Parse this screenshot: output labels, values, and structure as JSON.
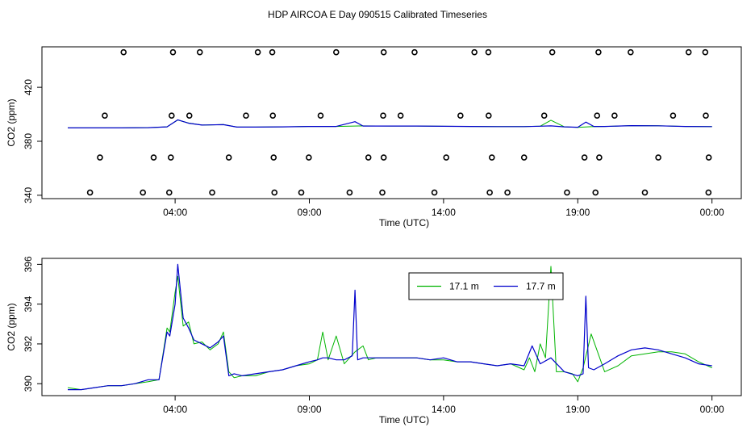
{
  "title": "HDP AIRCOA E  Day 090515  Calibrated Timeseries",
  "colors": {
    "green": "#00b400",
    "blue": "#0000cc",
    "axis": "#000000"
  },
  "chart_data": [
    {
      "type": "scatter",
      "xlabel": "Time (UTC)",
      "ylabel": "CO2 (ppm)",
      "xlim": [
        0,
        24.1
      ],
      "ylim": [
        337.5,
        450
      ],
      "xticks": [
        {
          "x": 4,
          "label": "04:00"
        },
        {
          "x": 9,
          "label": "09:00"
        },
        {
          "x": 14,
          "label": "14:00"
        },
        {
          "x": 19,
          "label": "19:00"
        },
        {
          "x": 24,
          "label": "00:00"
        }
      ],
      "yticks": [
        {
          "y": 340,
          "label": "340"
        },
        {
          "y": 380,
          "label": "380"
        },
        {
          "y": 420,
          "label": "420"
        }
      ],
      "calibration_points": {
        "x": [
          2.08,
          3.92,
          4.92,
          7.08,
          7.62,
          10.0,
          11.77,
          12.92,
          15.15,
          15.67,
          18.05,
          19.77,
          20.97,
          23.13,
          23.75,
          1.38,
          3.87,
          4.53,
          6.64,
          7.64,
          9.42,
          11.75,
          12.4,
          14.63,
          15.68,
          17.75,
          19.72,
          20.37,
          22.55,
          23.77,
          0.83,
          2.8,
          3.78,
          5.38,
          7.7,
          8.7,
          10.5,
          11.72,
          13.66,
          15.72,
          16.38,
          18.6,
          19.66,
          21.5,
          23.87,
          1.2,
          3.2,
          3.84,
          6.0,
          7.67,
          8.98,
          11.2,
          11.77,
          14.1,
          15.8,
          17.0,
          19.25,
          19.8,
          22.0,
          23.88
        ],
        "y": [
          446,
          446,
          446,
          446,
          446,
          446,
          446,
          446,
          446,
          446,
          446,
          446,
          446,
          446,
          446,
          399,
          399,
          399,
          399,
          399,
          399,
          399,
          399,
          399,
          399,
          399,
          399,
          399,
          399,
          399,
          342,
          342,
          342,
          342,
          342,
          342,
          342,
          342,
          342,
          342,
          342,
          342,
          342,
          342,
          342,
          368,
          368,
          368,
          368,
          368,
          368,
          368,
          368,
          368,
          368,
          368,
          368,
          368,
          368,
          368
        ]
      },
      "series": [
        {
          "x": [
            0,
            1,
            2,
            3,
            3.7,
            4.1,
            4.5,
            5,
            5.8,
            6.3,
            7,
            8,
            9,
            10,
            11,
            12,
            13,
            14,
            15,
            16,
            17,
            17.6,
            18,
            18.5,
            19,
            19.5,
            20,
            21,
            22,
            23,
            24
          ],
          "values": [
            389.9,
            389.9,
            389.9,
            390.1,
            390.7,
            395.8,
            393.5,
            392,
            392.4,
            390.5,
            390.5,
            390.7,
            391,
            391,
            391.4,
            391.3,
            391.3,
            391.1,
            391,
            390.9,
            390.9,
            391.2,
            395.6,
            390.7,
            390.3,
            390.8,
            391,
            391.6,
            391.5,
            391,
            390.9
          ]
        },
        {
          "x": [
            0,
            1,
            2,
            3,
            3.7,
            4.1,
            4.5,
            5,
            5.8,
            6.3,
            7,
            8,
            9,
            10,
            10.7,
            11,
            12,
            13,
            14,
            15,
            16,
            17,
            17.6,
            18,
            18.5,
            19,
            19.3,
            19.6,
            20,
            21,
            22,
            23,
            24
          ],
          "values": [
            389.9,
            389.9,
            389.9,
            390.1,
            390.7,
            395.9,
            393.4,
            392,
            392.3,
            390.5,
            390.5,
            390.7,
            391,
            391,
            394.5,
            391.3,
            391.3,
            391.3,
            391.1,
            391,
            390.9,
            390.9,
            391.2,
            391.4,
            390.7,
            390.4,
            394.2,
            391,
            391,
            391.6,
            391.5,
            391,
            390.9
          ]
        }
      ]
    },
    {
      "type": "line",
      "xlabel": "Time (UTC)",
      "ylabel": "CO2 (ppm)",
      "xlim": [
        0,
        24.1
      ],
      "ylim": [
        389.4,
        396.3
      ],
      "xticks": [
        {
          "x": 4,
          "label": "04:00"
        },
        {
          "x": 9,
          "label": "09:00"
        },
        {
          "x": 14,
          "label": "14:00"
        },
        {
          "x": 19,
          "label": "19:00"
        },
        {
          "x": 24,
          "label": "00:00"
        }
      ],
      "yticks": [
        {
          "y": 390,
          "label": "390"
        },
        {
          "y": 392,
          "label": "392"
        },
        {
          "y": 394,
          "label": "394"
        },
        {
          "y": 396,
          "label": "396"
        }
      ],
      "legend_position": "top-right",
      "series": [
        {
          "name": "17.1 m",
          "x": [
            0,
            0.5,
            1,
            1.5,
            2,
            2.5,
            3,
            3.4,
            3.7,
            3.8,
            4.0,
            4.1,
            4.3,
            4.5,
            4.7,
            5.0,
            5.3,
            5.6,
            5.8,
            6.0,
            6.2,
            6.5,
            7,
            7.5,
            8,
            8.5,
            9,
            9.3,
            9.5,
            9.7,
            10.0,
            10.3,
            10.7,
            11.0,
            11.2,
            11.5,
            12,
            12.5,
            13,
            13.5,
            14,
            14.5,
            15,
            15.5,
            16,
            16.5,
            17,
            17.2,
            17.4,
            17.6,
            17.8,
            18.0,
            18.2,
            18.5,
            18.8,
            19.0,
            19.2,
            19.5,
            20,
            20.5,
            21,
            21.5,
            22,
            22.5,
            23,
            23.5,
            24
          ],
          "values": [
            389.8,
            389.7,
            389.8,
            389.9,
            389.9,
            390.0,
            390.1,
            390.2,
            392.8,
            392.6,
            394.6,
            395.4,
            392.9,
            393.1,
            392.0,
            392.1,
            391.7,
            392.0,
            392.6,
            390.6,
            390.3,
            390.4,
            390.4,
            390.6,
            390.7,
            390.9,
            391.0,
            391.2,
            392.6,
            391.2,
            392.4,
            391.0,
            391.6,
            391.9,
            391.2,
            391.3,
            391.3,
            391.3,
            391.3,
            391.2,
            391.2,
            391.1,
            391.1,
            391.0,
            390.9,
            391.0,
            390.7,
            391.3,
            390.6,
            392.0,
            391.3,
            395.9,
            390.6,
            390.6,
            390.5,
            390.1,
            390.8,
            392.5,
            390.6,
            390.9,
            391.4,
            391.5,
            391.6,
            391.6,
            391.5,
            391.1,
            390.8
          ]
        },
        {
          "name": "17.7 m",
          "x": [
            0,
            0.5,
            1,
            1.5,
            2,
            2.5,
            3,
            3.4,
            3.7,
            3.8,
            4.0,
            4.1,
            4.3,
            4.5,
            4.7,
            5.0,
            5.3,
            5.6,
            5.8,
            6.0,
            6.2,
            6.5,
            7,
            7.5,
            8,
            8.5,
            9,
            9.3,
            9.5,
            9.7,
            10.0,
            10.3,
            10.6,
            10.7,
            10.8,
            11.0,
            11.5,
            12,
            12.5,
            13,
            13.5,
            14,
            14.5,
            15,
            15.5,
            16,
            16.5,
            17,
            17.3,
            17.6,
            18.0,
            18.5,
            19.0,
            19.2,
            19.3,
            19.4,
            19.6,
            20,
            20.5,
            21,
            21.5,
            22,
            22.5,
            23,
            23.5,
            24
          ],
          "values": [
            389.7,
            389.7,
            389.8,
            389.9,
            389.9,
            390.0,
            390.2,
            390.2,
            392.6,
            392.4,
            394.0,
            396.0,
            393.3,
            392.8,
            392.2,
            392.0,
            391.8,
            392.1,
            392.4,
            390.4,
            390.5,
            390.4,
            390.5,
            390.6,
            390.7,
            390.9,
            391.1,
            391.2,
            391.3,
            391.3,
            391.2,
            391.2,
            391.4,
            394.7,
            391.2,
            391.3,
            391.3,
            391.3,
            391.3,
            391.3,
            391.2,
            391.3,
            391.1,
            391.1,
            391.0,
            390.9,
            391.0,
            390.9,
            391.9,
            391.0,
            391.3,
            390.6,
            390.4,
            390.5,
            394.4,
            390.8,
            390.7,
            391.0,
            391.4,
            391.7,
            391.8,
            391.7,
            391.5,
            391.3,
            391.0,
            390.9
          ]
        }
      ]
    }
  ]
}
